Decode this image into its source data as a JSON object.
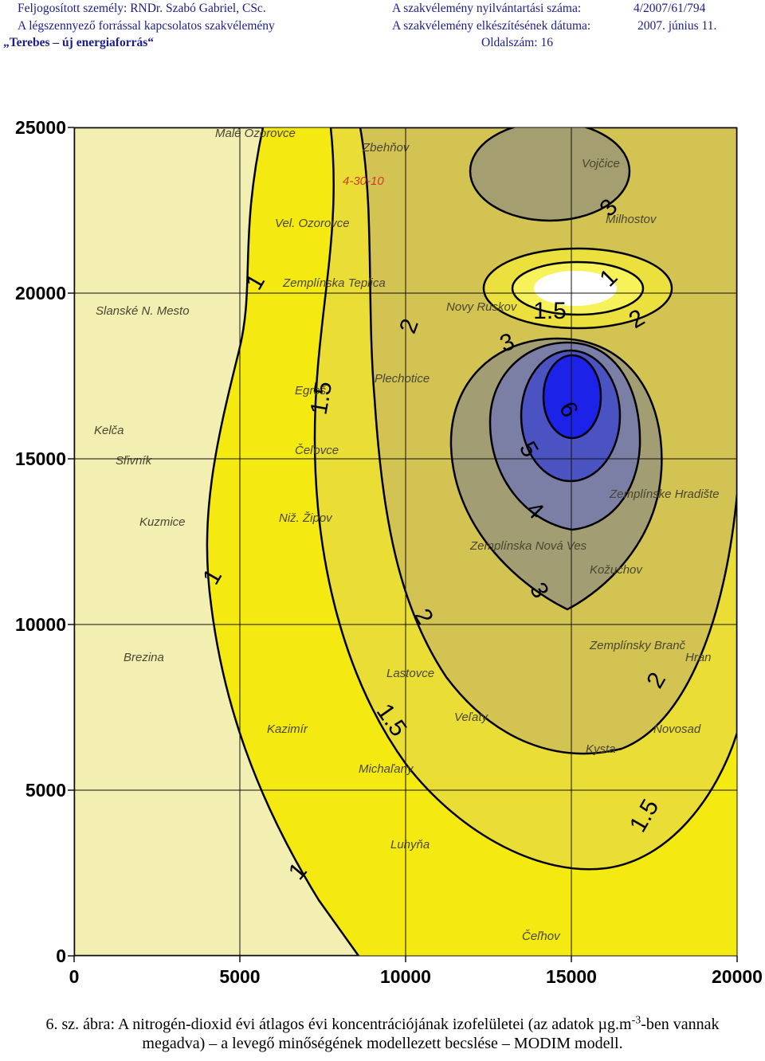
{
  "header": {
    "rows": [
      [
        "Feljogosított személy: RNDr. Szabó Gabriel, CSc.",
        "A szakvélemény nyilvántartási száma:",
        "4/2007/61/794"
      ],
      [
        "A légszennyező forrással kapcsolatos szakvélemény",
        "A szakvélemény elkészítésének dátuma:",
        "2007. június 11."
      ],
      [
        "„Terebes – új energiaforrás“",
        "Oldalszám: 16"
      ]
    ]
  },
  "figure": {
    "xlim": [
      0,
      20000
    ],
    "ylim": [
      0,
      25000
    ],
    "xticks": [
      0,
      5000,
      10000,
      15000,
      20000
    ],
    "yticks": [
      0,
      5000,
      10000,
      15000,
      20000,
      25000
    ],
    "contour_labels": [
      "1",
      "1",
      "1",
      "1",
      "1.5",
      "1.5",
      "1.5",
      "1.5",
      "2",
      "2",
      "2",
      "2",
      "3",
      "3",
      "3",
      "4",
      "5",
      "6"
    ],
    "map_labels": [
      "Malé Ozorovce",
      "Zbehňov",
      "Vojčice",
      "Vel. Ozorovce",
      "Milhostov",
      "Zemplínska Teplica",
      "Slanské N. Mesto",
      "Novy Ruskov",
      "Plechotice",
      "Egreš",
      "Čeľovce",
      "Kelča",
      "Sľivník",
      "Kuzmice",
      "Niž. Žipov",
      "Zemplínska Nová Ves",
      "Zemplínske Hradište",
      "Kožuchov",
      "Brezina",
      "Lastovce",
      "Zemplínsky Branč",
      "Hran",
      "Kazimír",
      "Veľaty",
      "Novosad",
      "Kysta",
      "Michaľany",
      "Luhyňa",
      "Čeľhov",
      "4-30-10"
    ]
  },
  "caption": {
    "before": "6. sz. ábra: A nitrogén-dioxid évi átlagos évi koncentrációjának izofelületei (az adatok µg.m",
    "sup": "-3",
    "after": "-ben vannak megadva) – a levegő minőségének modellezett becslése – MODIM modell."
  }
}
